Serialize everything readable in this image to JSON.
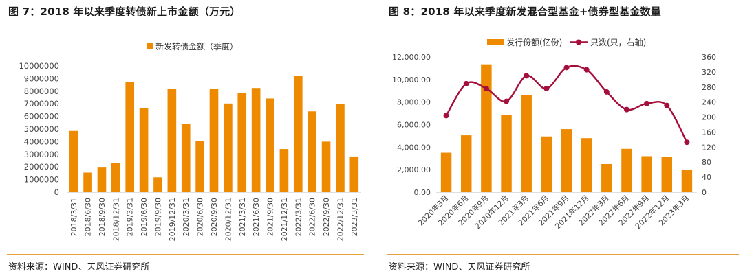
{
  "colors": {
    "bar": "#ED8A00",
    "line": "#A50F3B",
    "accent_rule": "#E7A13C",
    "axis_text": "#444444"
  },
  "left": {
    "title": "图 7：2018 年以来季度转债新上市金额（万元）",
    "source": "资料来源：WIND、天风证券研究所",
    "chart_data": {
      "type": "bar",
      "legend": "新发转债金额（季度）",
      "legend_position": "top-center",
      "categories": [
        "2018/3/31",
        "2018/6/30",
        "2018/9/30",
        "2018/12/31",
        "2019/3/31",
        "2019/6/30",
        "2019/9/30",
        "2019/12/31",
        "2020/3/31",
        "2020/6/30",
        "2020/9/30",
        "2020/12/31",
        "2021/3/31",
        "2021/6/30",
        "2021/9/30",
        "2021/12/31",
        "2022/3/31",
        "2022/6/30",
        "2022/9/30",
        "2022/12/31",
        "2023/3/31"
      ],
      "values": [
        4850000,
        1550000,
        1950000,
        2320000,
        8700000,
        6650000,
        1180000,
        8180000,
        5420000,
        4060000,
        8180000,
        7020000,
        7850000,
        8250000,
        7420000,
        3420000,
        9200000,
        6400000,
        4000000,
        6980000,
        2830000
      ],
      "ylim": [
        0,
        10000000
      ],
      "yticks": [
        "0",
        "1000000",
        "2000000",
        "3000000",
        "4000000",
        "5000000",
        "6000000",
        "7000000",
        "8000000",
        "9000000",
        "10000000"
      ],
      "grid": false
    }
  },
  "right": {
    "title": "图 8：2018 年以来季度新发混合型基金+债券型基金数量",
    "source": "资料来源：WIND、天风证券研究所",
    "chart_data": {
      "type": "bar+line",
      "legend_position": "top-center",
      "categories": [
        "2020年3月",
        "2020年6月",
        "2020年9月",
        "2020年12月",
        "2021年3月",
        "2021年6月",
        "2021年9月",
        "2021年12月",
        "2022年3月",
        "2022年6月",
        "2022年9月",
        "2022年12月",
        "2023年3月"
      ],
      "series": [
        {
          "name": "发行份额(亿份)",
          "type": "bar",
          "axis": "left",
          "values": [
            3500,
            5050,
            11350,
            6850,
            8650,
            4950,
            5600,
            4800,
            2500,
            3850,
            3200,
            3150,
            2000
          ]
        },
        {
          "name": "只数(只，右轴)",
          "type": "line",
          "axis": "right",
          "values": [
            204,
            289,
            276,
            242,
            310,
            276,
            332,
            326,
            267,
            220,
            236,
            231,
            133
          ]
        }
      ],
      "ylim_left": [
        0,
        12000
      ],
      "yticks_left": [
        "0.00",
        "2,000.00",
        "4,000.00",
        "6,000.00",
        "8,000.00",
        "10,000.00",
        "12,000.00"
      ],
      "ylim_right": [
        0,
        360
      ],
      "yticks_right": [
        "0",
        "40",
        "80",
        "120",
        "160",
        "200",
        "240",
        "280",
        "320",
        "360"
      ],
      "grid": false
    }
  }
}
